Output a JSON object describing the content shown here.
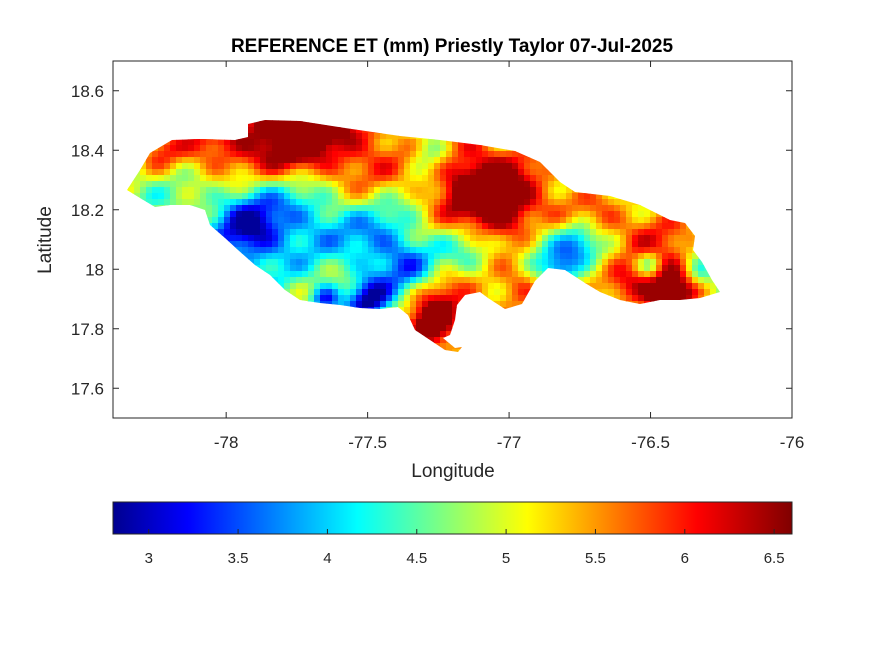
{
  "chart_data": {
    "type": "heatmap",
    "title": "REFERENCE ET (mm) Priestly Taylor 07-Jul-2025",
    "xlabel": "Longitude",
    "ylabel": "Latitude",
    "xlim": [
      -78.4,
      -76
    ],
    "ylim": [
      17.5,
      18.7
    ],
    "xticks": [
      -78,
      -77.5,
      -77,
      -76.5,
      -76
    ],
    "xtick_labels": [
      "-78",
      "-77.5",
      "-77",
      "-76.5",
      "-76"
    ],
    "yticks": [
      17.6,
      17.8,
      18,
      18.2,
      18.4,
      18.6
    ],
    "ytick_labels": [
      "17.6",
      "17.8",
      "18",
      "18.2",
      "18.4",
      "18.6"
    ],
    "colormap": "jet",
    "colorbar": {
      "location": "bottom",
      "range": [
        2.8,
        6.6
      ],
      "ticks": [
        3,
        3.5,
        4,
        4.5,
        5,
        5.5,
        6,
        6.5
      ],
      "tick_labels": [
        "3",
        "3.5",
        "4",
        "4.5",
        "5",
        "5.5",
        "6",
        "6.5"
      ]
    },
    "grid": false,
    "value_min": 2.9,
    "value_max": 6.5
  }
}
